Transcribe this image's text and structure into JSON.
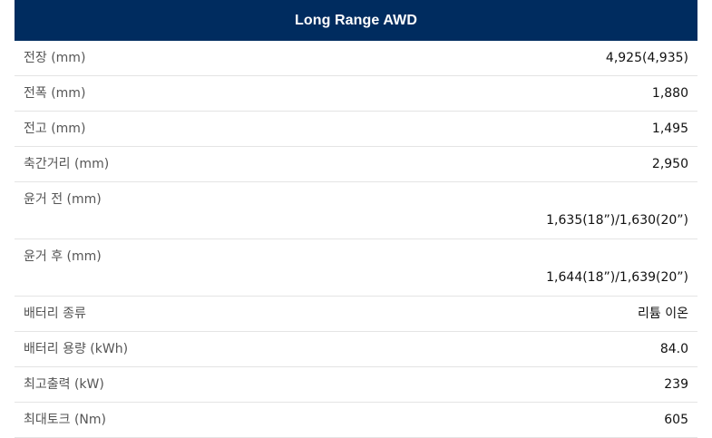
{
  "header": {
    "title": "Long Range AWD"
  },
  "rows": [
    {
      "label": "전장 (mm)",
      "value": "4,925(4,935)"
    },
    {
      "label": "전폭 (mm)",
      "value": "1,880"
    },
    {
      "label": "전고 (mm)",
      "value": "1,495"
    },
    {
      "label": "축간거리 (mm)",
      "value": "2,950"
    },
    {
      "label": "윤거 전 (mm)",
      "value": "1,635(18”)/1,630(20”)"
    },
    {
      "label": "윤거 후 (mm)",
      "value": "1,644(18”)/1,639(20”)"
    },
    {
      "label": "배터리 종류",
      "value": "리튬 이온"
    },
    {
      "label": "배터리 용량 (kWh)",
      "value": "84.0"
    },
    {
      "label": "최고출력 (kW)",
      "value": "239"
    },
    {
      "label": "최대토크 (Nm)",
      "value": "605"
    }
  ],
  "colors": {
    "header_bg": "#002c5f",
    "header_text": "#ffffff",
    "divider": "#e4e4e4"
  }
}
